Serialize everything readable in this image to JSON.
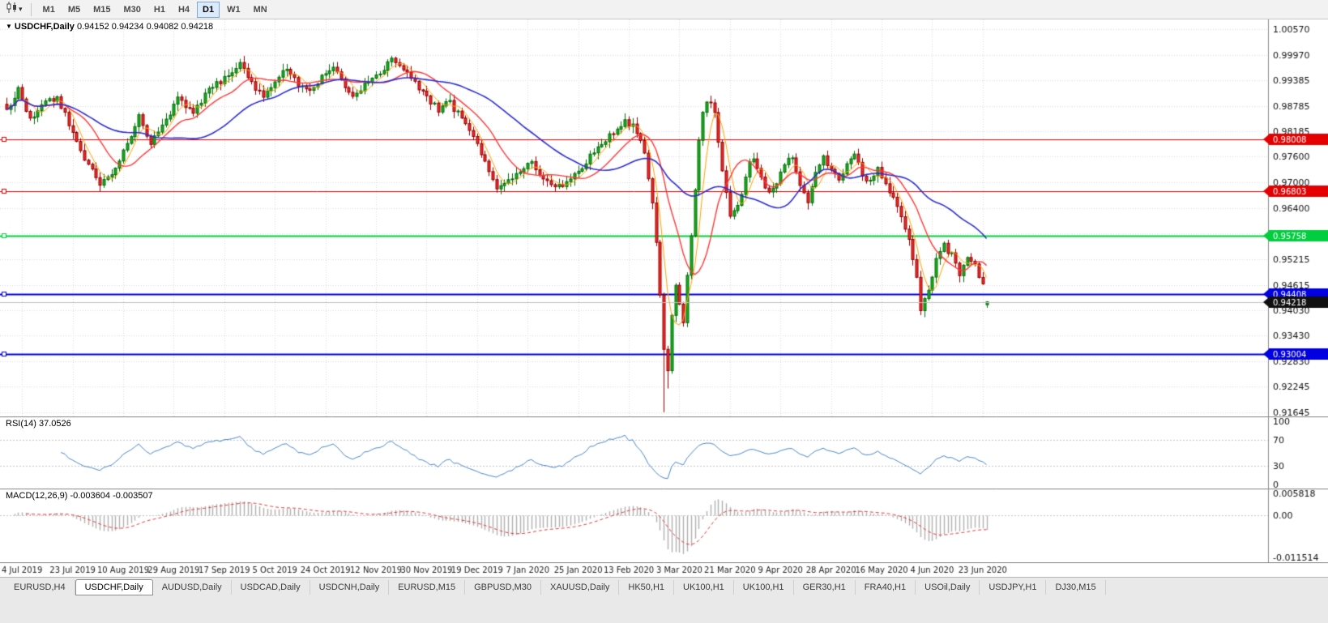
{
  "toolbar": {
    "timeframes": [
      "M1",
      "M5",
      "M15",
      "M30",
      "H1",
      "H4",
      "D1",
      "W1",
      "MN"
    ],
    "active_timeframe": "D1"
  },
  "chart": {
    "collapse_glyph": "▼",
    "title_symbol": "USDCHF,Daily",
    "title_ohlc": "0.94152 0.94234 0.94082 0.94218"
  },
  "price_axis_labels": [
    "1.00570",
    "0.99970",
    "0.99385",
    "0.98785",
    "0.98185",
    "0.97600",
    "0.97000",
    "0.96400",
    "0.95815",
    "0.95215",
    "0.94615",
    "0.94030",
    "0.93430",
    "0.92830",
    "0.92245",
    "0.91645"
  ],
  "levels": [
    {
      "price": 0.98008,
      "label": "0.98008",
      "color": "#e40000",
      "line_width": 1
    },
    {
      "price": 0.96803,
      "label": "0.96803",
      "color": "#e40000",
      "line_width": 1
    },
    {
      "price": 0.95758,
      "label": "0.95758",
      "color": "#00ce3e",
      "line_width": 2
    },
    {
      "price": 0.94408,
      "label": "0.94408",
      "color": "#0000e0",
      "line_width": 2
    },
    {
      "price": 0.93004,
      "label": "0.93004",
      "color": "#0000e0",
      "line_width": 2
    }
  ],
  "current_price": {
    "value": 0.94218,
    "label": "0.94218"
  },
  "rsi_panel": {
    "title": "RSI(14) 37.0526",
    "levels": [
      70,
      30
    ],
    "axis_labels": [
      {
        "value": 100,
        "label": "100"
      },
      {
        "value": 70,
        "label": "70"
      },
      {
        "value": 30,
        "label": "30"
      },
      {
        "value": 0,
        "label": "0"
      }
    ]
  },
  "macd_panel": {
    "title": "MACD(12,26,9) -0.003604 -0.003507",
    "axis_labels": [
      {
        "value": 0.005818,
        "label": "0.005818"
      },
      {
        "value": 0,
        "label": "0.00"
      },
      {
        "value": -0.011514,
        "label": "-0.011514"
      }
    ]
  },
  "date_axis": [
    "4 Jul 2019",
    "23 Jul 2019",
    "10 Aug 2019",
    "29 Aug 2019",
    "17 Sep 2019",
    "5 Oct 2019",
    "24 Oct 2019",
    "12 Nov 2019",
    "30 Nov 2019",
    "19 Dec 2019",
    "7 Jan 2020",
    "25 Jan 2020",
    "13 Feb 2020",
    "3 Mar 2020",
    "21 Mar 2020",
    "9 Apr 2020",
    "28 Apr 2020",
    "16 May 2020",
    "4 Jun 2020",
    "23 Jun 2020"
  ],
  "tabbar": {
    "active": "USDCHF,Daily",
    "items": [
      "EURUSD,H4",
      "USDCHF,Daily",
      "AUDUSD,Daily",
      "USDCAD,Daily",
      "USDCNH,Daily",
      "EURUSD,M15",
      "GBPUSD,M30",
      "XAUUSD,Daily",
      "HK50,H1",
      "UK100,H1",
      "UK100,H1",
      "GER30,H1",
      "FRA40,H1",
      "USOil,Daily",
      "USDJPY,H1",
      "DJ30,M15"
    ],
    "active_index": 1
  },
  "chart_data": {
    "type": "candlestick",
    "symbol": "USDCHF",
    "timeframe": "Daily",
    "bar_count": 253,
    "price_axis_range": [
      0.91645,
      1.0057
    ],
    "last_bar": {
      "open": 0.94152,
      "high": 0.94234,
      "low": 0.94082,
      "close": 0.94218
    },
    "crash_bar": {
      "index": 169,
      "low": 0.9165
    },
    "date_tick_first": 4,
    "date_tick_step": 13,
    "close_waypoints": [
      [
        0,
        0.987
      ],
      [
        3,
        0.9915
      ],
      [
        6,
        0.985
      ],
      [
        9,
        0.988
      ],
      [
        13,
        0.99
      ],
      [
        16,
        0.984
      ],
      [
        20,
        0.9755
      ],
      [
        24,
        0.97
      ],
      [
        27,
        0.972
      ],
      [
        31,
        0.979
      ],
      [
        34,
        0.9855
      ],
      [
        37,
        0.9795
      ],
      [
        40,
        0.983
      ],
      [
        44,
        0.9895
      ],
      [
        48,
        0.9865
      ],
      [
        52,
        0.9915
      ],
      [
        56,
        0.9945
      ],
      [
        60,
        0.9975
      ],
      [
        63,
        0.993
      ],
      [
        66,
        0.99
      ],
      [
        69,
        0.994
      ],
      [
        72,
        0.997
      ],
      [
        75,
        0.993
      ],
      [
        78,
        0.991
      ],
      [
        81,
        0.9945
      ],
      [
        84,
        0.9965
      ],
      [
        87,
        0.992
      ],
      [
        90,
        0.99
      ],
      [
        93,
        0.9935
      ],
      [
        96,
        0.996
      ],
      [
        99,
        0.9985
      ],
      [
        102,
        0.996
      ],
      [
        104,
        0.994
      ],
      [
        108,
        0.9895
      ],
      [
        111,
        0.987
      ],
      [
        114,
        0.9885
      ],
      [
        117,
        0.9845
      ],
      [
        120,
        0.9805
      ],
      [
        123,
        0.9745
      ],
      [
        126,
        0.968
      ],
      [
        129,
        0.97
      ],
      [
        132,
        0.973
      ],
      [
        135,
        0.975
      ],
      [
        138,
        0.971
      ],
      [
        141,
        0.9685
      ],
      [
        144,
        0.97
      ],
      [
        147,
        0.972
      ],
      [
        150,
        0.976
      ],
      [
        153,
        0.979
      ],
      [
        156,
        0.9815
      ],
      [
        159,
        0.9845
      ],
      [
        162,
        0.982
      ],
      [
        164,
        0.977
      ],
      [
        166,
        0.965
      ],
      [
        167,
        0.956
      ],
      [
        168,
        0.944
      ],
      [
        169,
        0.931
      ],
      [
        170,
        0.926
      ],
      [
        171,
        0.939
      ],
      [
        172,
        0.946
      ],
      [
        173,
        0.942
      ],
      [
        174,
        0.938
      ],
      [
        175,
        0.948
      ],
      [
        176,
        0.958
      ],
      [
        177,
        0.968
      ],
      [
        178,
        0.979
      ],
      [
        179,
        0.986
      ],
      [
        180,
        0.9885
      ],
      [
        182,
        0.987
      ],
      [
        184,
        0.973
      ],
      [
        186,
        0.962
      ],
      [
        188,
        0.964
      ],
      [
        190,
        0.972
      ],
      [
        192,
        0.976
      ],
      [
        194,
        0.971
      ],
      [
        196,
        0.967
      ],
      [
        198,
        0.97
      ],
      [
        200,
        0.9745
      ],
      [
        202,
        0.976
      ],
      [
        204,
        0.97
      ],
      [
        206,
        0.966
      ],
      [
        208,
        0.973
      ],
      [
        210,
        0.976
      ],
      [
        212,
        0.973
      ],
      [
        214,
        0.97
      ],
      [
        216,
        0.974
      ],
      [
        218,
        0.976
      ],
      [
        220,
        0.972
      ],
      [
        222,
        0.97
      ],
      [
        224,
        0.973
      ],
      [
        226,
        0.97
      ],
      [
        228,
        0.966
      ],
      [
        230,
        0.962
      ],
      [
        232,
        0.956
      ],
      [
        234,
        0.948
      ],
      [
        235,
        0.94
      ],
      [
        237,
        0.945
      ],
      [
        239,
        0.952
      ],
      [
        241,
        0.9555
      ],
      [
        243,
        0.953
      ],
      [
        245,
        0.949
      ],
      [
        247,
        0.9525
      ],
      [
        249,
        0.9505
      ],
      [
        251,
        0.9465
      ],
      [
        252,
        0.94218
      ]
    ],
    "moving_averages": [
      {
        "period": 5,
        "color": "#ffa200",
        "width": 1
      },
      {
        "period": 13,
        "color": "#ff3838",
        "width": 1.4
      },
      {
        "period": 34,
        "color": "#2d2dcf",
        "width": 1.6
      }
    ],
    "rsi": {
      "period": 14,
      "color": "#4a87c7",
      "last_value": 37.0526
    },
    "macd": {
      "fast": 12,
      "slow": 26,
      "signal": 9,
      "histogram_color": "#b0b0b0",
      "signal_color": "#e43b3b",
      "last_main": -0.003604,
      "last_signal": -0.003507
    },
    "colors": {
      "up_fill": "#15b01a",
      "up_border": "#066a0a",
      "down_fill": "#f42929",
      "down_border": "#8f0000",
      "grid": "#dadada",
      "axis_text": "#111111",
      "current_line": "#bfbfbf",
      "current_box": "#101010"
    },
    "noise": 0.0016,
    "seed": 20200707
  }
}
